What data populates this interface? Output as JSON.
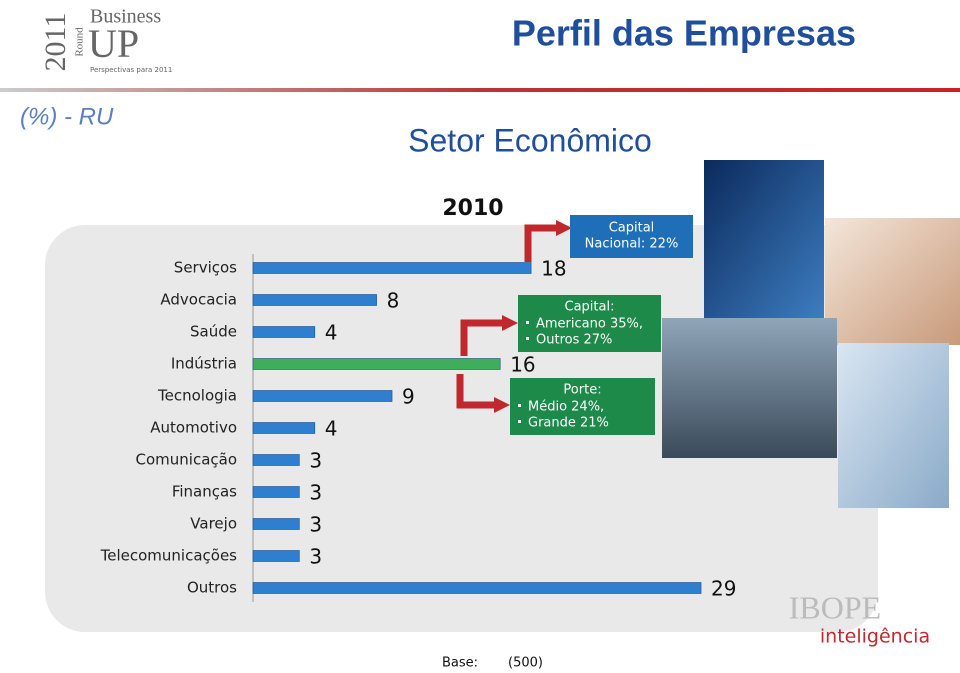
{
  "header": {
    "title": "Perfil das Empresas",
    "logo_year": "2011",
    "logo_round": "Round",
    "logo_business": "Business",
    "logo_up": "UP",
    "logo_tagline": "Perspectivas para 2011"
  },
  "subtitle_left": "(%) - RU",
  "chart_data": {
    "type": "hbar",
    "title": "Setor Econômico",
    "subtitle": "2010",
    "categories": [
      "Serviços",
      "Advocacia",
      "Saúde",
      "Indústria",
      "Tecnologia",
      "Automotivo",
      "Comunicação",
      "Finanças",
      "Varejo",
      "Telecomunicações",
      "Outros"
    ],
    "values": [
      18,
      8,
      4,
      16,
      9,
      4,
      3,
      3,
      3,
      3,
      29
    ],
    "colors": [
      "#2f7fd0",
      "#2f7fd0",
      "#2f7fd0",
      "#3fae5a",
      "#2f7fd0",
      "#2f7fd0",
      "#2f7fd0",
      "#2f7fd0",
      "#2f7fd0",
      "#2f7fd0",
      "#2f7fd0"
    ],
    "annotations": [
      {
        "lines": [
          "Capital",
          "Nacional: 22%"
        ],
        "color": "#1f6fb8"
      },
      {
        "heading": "Capital:",
        "items": [
          "Americano 35%,",
          "Outros 27%"
        ],
        "color": "#1e8a4a"
      },
      {
        "heading": "Porte:",
        "items": [
          "Médio 24%,",
          "Grande 21%"
        ],
        "color": "#1e8a4a"
      }
    ]
  },
  "footer": {
    "base_label": "Base:",
    "base_value": "(500)",
    "brand": "IBOPE",
    "brand_sub": "inteligência"
  }
}
